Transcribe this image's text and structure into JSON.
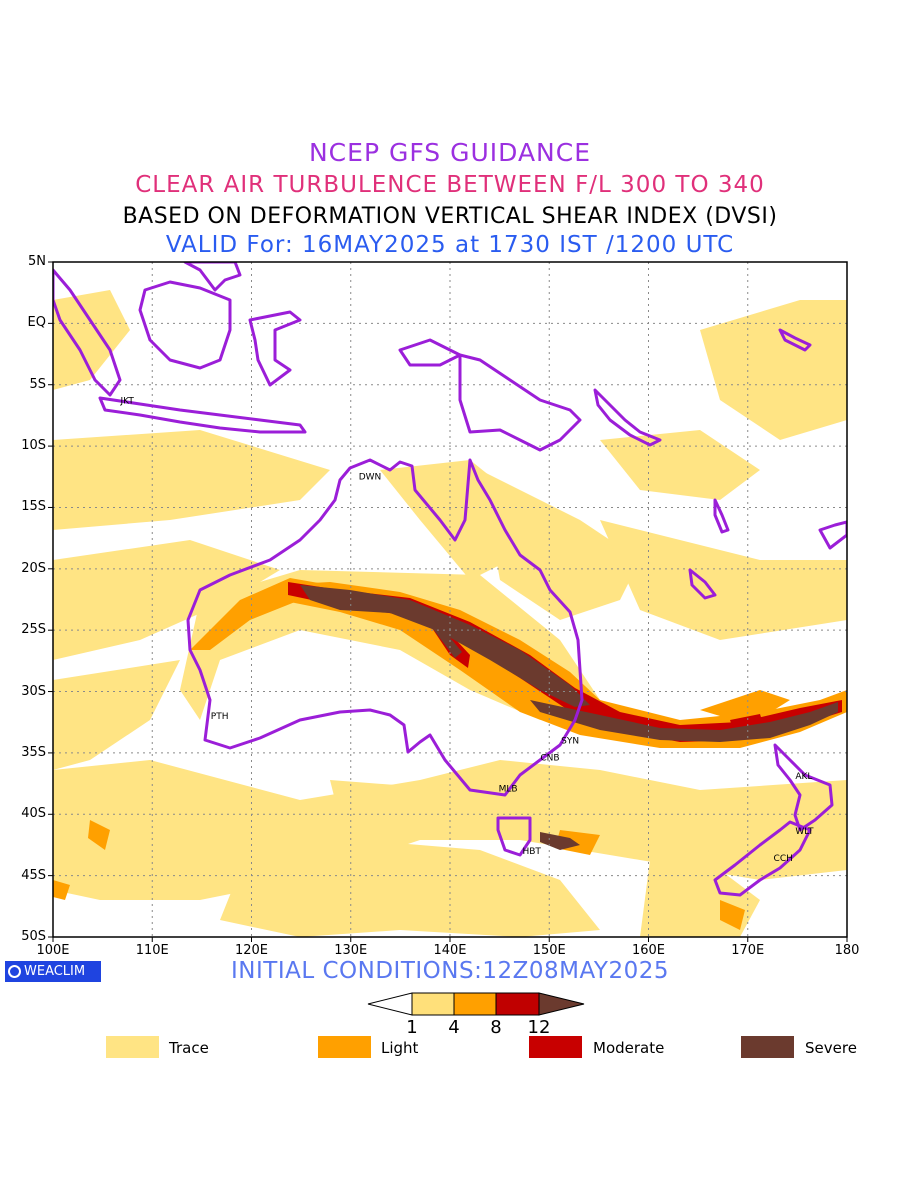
{
  "header": {
    "line1": "NCEP GFS GUIDANCE",
    "line2": "CLEAR AIR TURBULENCE BETWEEN F/L 300 TO 340",
    "line3": "BASED ON DEFORMATION VERTICAL SHEAR INDEX (DVSI)",
    "line4": "VALID For: 16MAY2025 at 1730 IST /1200 UTC"
  },
  "map": {
    "lat_labels": [
      "5N",
      "EQ",
      "5S",
      "10S",
      "15S",
      "20S",
      "25S",
      "30S",
      "35S",
      "40S",
      "45S",
      "50S"
    ],
    "lon_labels": [
      "100E",
      "110E",
      "120E",
      "130E",
      "140E",
      "150E",
      "160E",
      "170E",
      "180"
    ],
    "lat_range": [
      -50,
      5
    ],
    "lon_range": [
      100,
      180
    ],
    "grid": true,
    "stations": [
      {
        "code": "JKT",
        "lon": 106.8,
        "lat": -6.2
      },
      {
        "code": "DWN",
        "lon": 130.8,
        "lat": -12.4
      },
      {
        "code": "PTH",
        "lon": 115.9,
        "lat": -31.9
      },
      {
        "code": "SYN",
        "lon": 151.2,
        "lat": -33.9
      },
      {
        "code": "CNB",
        "lon": 149.1,
        "lat": -35.3
      },
      {
        "code": "MLB",
        "lon": 144.9,
        "lat": -37.8
      },
      {
        "code": "HBT",
        "lon": 147.3,
        "lat": -42.9
      },
      {
        "code": "AKL",
        "lon": 174.8,
        "lat": -36.8
      },
      {
        "code": "WLT",
        "lon": 174.8,
        "lat": -41.3
      },
      {
        "code": "CCH",
        "lon": 172.6,
        "lat": -43.5
      }
    ]
  },
  "footer": {
    "logo": "WEACLIM",
    "initial_conditions": "INITIAL CONDITIONS:12Z08MAY2025"
  },
  "colorbar": {
    "ticks": [
      "1",
      "4",
      "8",
      "12"
    ],
    "colors": [
      "#ffffff",
      "#ffe07a",
      "#ffa000",
      "#c00000",
      "#6b3a2e"
    ]
  },
  "legend": [
    {
      "label": "Trace",
      "color": "#ffe484"
    },
    {
      "label": "Light",
      "color": "#ffa000"
    },
    {
      "label": "Moderate",
      "color": "#c80000"
    },
    {
      "label": "Severe",
      "color": "#6b3a2e"
    }
  ],
  "colors": {
    "coastline": "#9b1ed8",
    "trace": "#ffe484",
    "light": "#ffa000",
    "moderate": "#c80000",
    "severe": "#6b3a2e"
  }
}
